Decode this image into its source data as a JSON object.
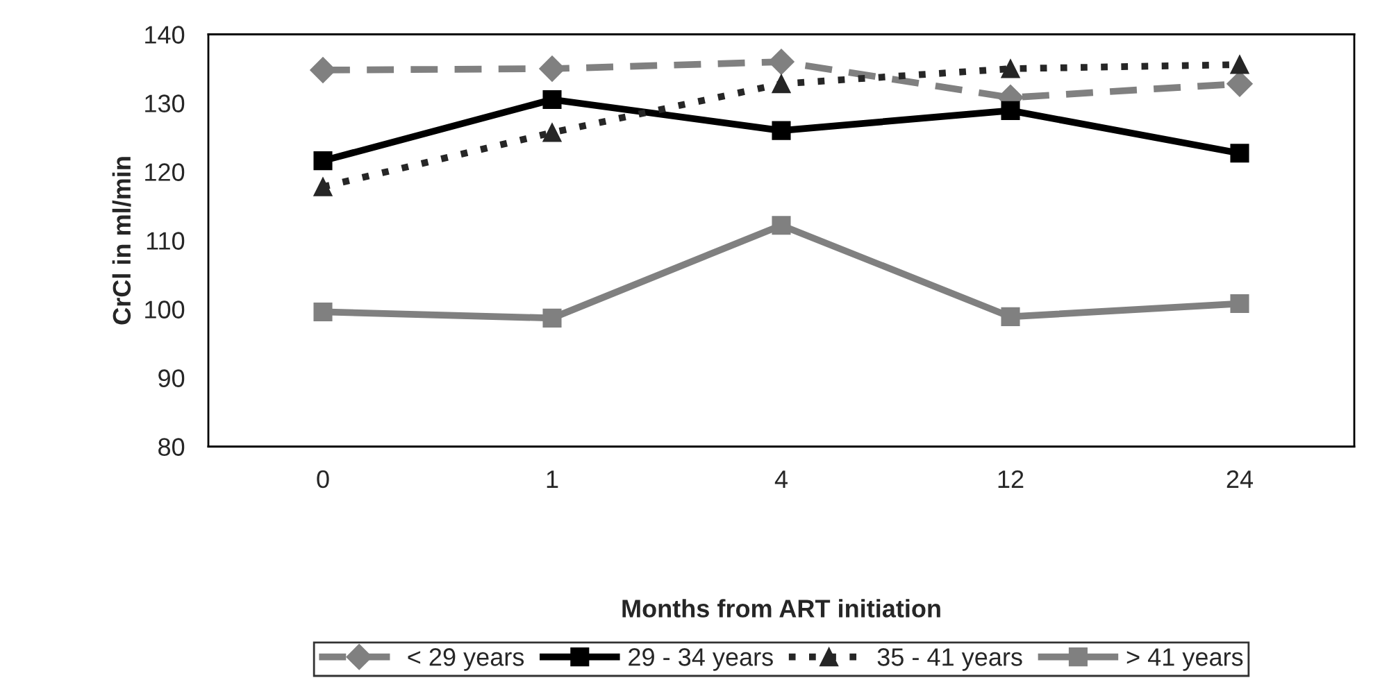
{
  "chart_data": {
    "type": "line",
    "xlabel": "Months from ART initiation",
    "ylabel": "CrCl in ml/min",
    "categories": [
      "0",
      "1",
      "4",
      "12",
      "24"
    ],
    "ylim": [
      80,
      140
    ],
    "yticks": [
      80,
      90,
      100,
      110,
      120,
      130,
      140
    ],
    "grid": false,
    "legend": "bottom",
    "series": [
      {
        "name": "< 29 years",
        "color": "#808080",
        "marker": "diamond",
        "line_style": "dashed",
        "values": [
          134.8,
          135,
          136,
          130.8,
          132.8
        ]
      },
      {
        "name": "29 - 34 years",
        "color": "#000000",
        "marker": "square",
        "line_style": "solid",
        "values": [
          121.6,
          130.5,
          126,
          128.9,
          122.7
        ]
      },
      {
        "name": "35 - 41 years",
        "color": "#262626",
        "marker": "triangle",
        "line_style": "dotted",
        "values": [
          117.8,
          125.7,
          132.8,
          135,
          135.6
        ]
      },
      {
        "name": "> 41 years",
        "color": "#808080",
        "marker": "square",
        "line_style": "solid",
        "values": [
          99.6,
          98.7,
          112.2,
          98.9,
          100.8
        ]
      }
    ]
  }
}
